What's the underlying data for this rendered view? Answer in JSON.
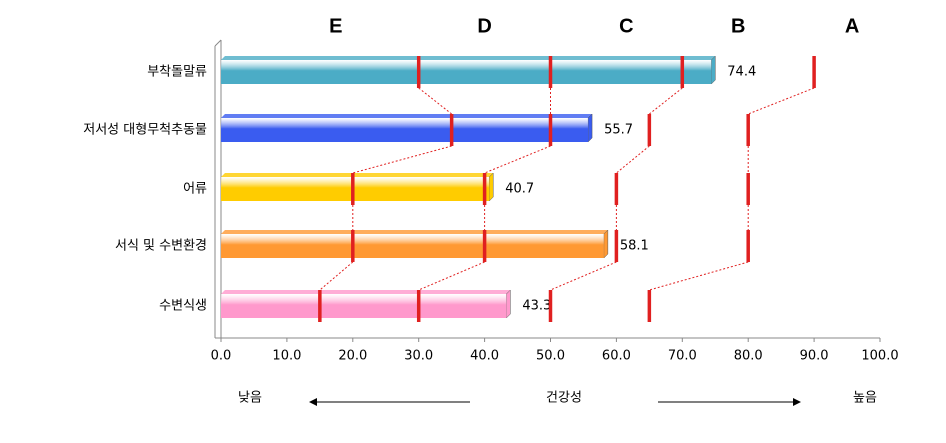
{
  "chart_data": {
    "type": "bar",
    "orientation": "horizontal",
    "categories": [
      "부착돌말류",
      "저서성 대형무척추동물",
      "어류",
      "서식 및 수변환경",
      "수변식생"
    ],
    "values": [
      74.4,
      55.7,
      40.7,
      58.1,
      43.3
    ],
    "colors": [
      "#4bacc6",
      "#3a5cf0",
      "#ffcc00",
      "#ff9933",
      "#ff99cc"
    ],
    "boundary_color": "#e02020",
    "boundaries": [
      [
        30,
        50,
        70,
        90
      ],
      [
        35,
        50,
        65,
        80
      ],
      [
        20,
        40,
        60,
        80
      ],
      [
        20,
        40,
        60,
        80
      ],
      [
        15,
        30,
        50,
        65
      ]
    ],
    "grades": [
      "E",
      "D",
      "C",
      "B",
      "A"
    ],
    "xlim": [
      0,
      100
    ],
    "xticks": [
      {
        "value": 0,
        "label": "0.0"
      },
      {
        "value": 10,
        "label": "10.0"
      },
      {
        "value": 20,
        "label": "20.0"
      },
      {
        "value": 30,
        "label": "30.0"
      },
      {
        "value": 40,
        "label": "40.0"
      },
      {
        "value": 50,
        "label": "50.0"
      },
      {
        "value": 60,
        "label": "60.0"
      },
      {
        "value": 70,
        "label": "70.0"
      },
      {
        "value": 80,
        "label": "80.0"
      },
      {
        "value": 90,
        "label": "90.0"
      },
      {
        "value": 100,
        "label": "100.0"
      }
    ],
    "x_label_low": "낮음",
    "x_label": "건강성",
    "x_label_high": "높음"
  }
}
